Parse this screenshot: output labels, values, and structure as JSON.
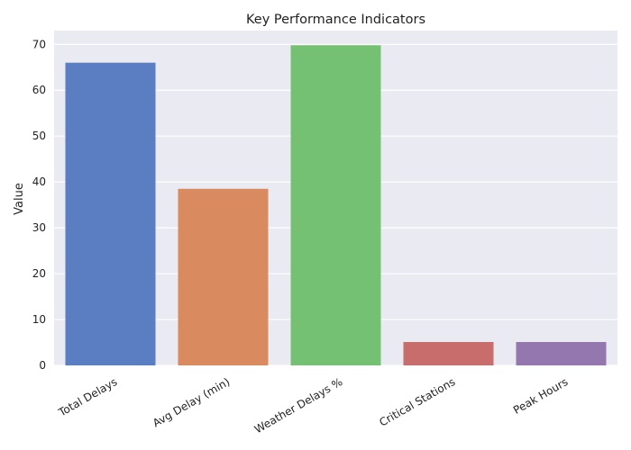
{
  "chart_data": {
    "type": "bar",
    "title": "Key Performance Indicators",
    "xlabel": "",
    "ylabel": "Value",
    "categories": [
      "Total Delays",
      "Avg Delay (min)",
      "Weather Delays %",
      "Critical Stations",
      "Peak Hours"
    ],
    "values": [
      66,
      38.5,
      69.8,
      5.1,
      5.1
    ],
    "colors": [
      "#5b7ec2",
      "#d98b5f",
      "#75c173",
      "#c86d6b",
      "#9577b0"
    ],
    "ylim": [
      0,
      73
    ],
    "yticks": [
      0,
      10,
      20,
      30,
      40,
      50,
      60,
      70
    ],
    "grid": true,
    "legend": "none",
    "background_color": "#eaeaf2"
  }
}
